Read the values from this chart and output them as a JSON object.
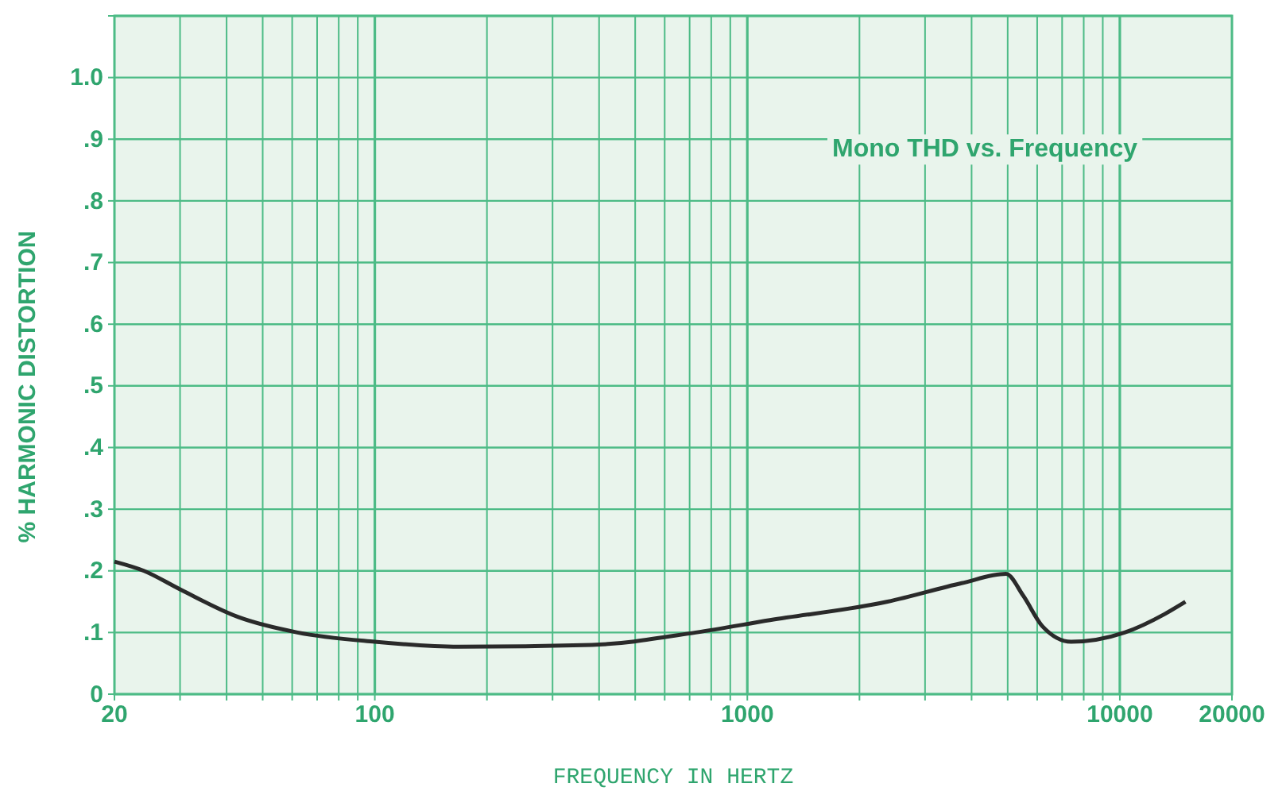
{
  "chart_data": {
    "type": "line",
    "title": "Mono THD vs. Frequency",
    "xlabel": "FREQUENCY IN HERTZ",
    "ylabel": "% HARMONIC DISTORTION",
    "log": "x",
    "grid": true,
    "marker": "none",
    "line_style": "solid",
    "xlim": [
      20,
      20000
    ],
    "xticks": [
      20,
      {
        "value": 30,
        "label": null
      },
      {
        "value": 40,
        "label": null
      },
      {
        "value": 50,
        "label": null
      },
      {
        "value": 60,
        "label": null
      },
      {
        "value": 70,
        "label": null
      },
      {
        "value": 80,
        "label": null
      },
      {
        "value": 90,
        "label": null
      },
      100,
      {
        "value": 200,
        "label": null
      },
      {
        "value": 300,
        "label": null
      },
      {
        "value": 400,
        "label": null
      },
      {
        "value": 500,
        "label": null
      },
      {
        "value": 600,
        "label": null
      },
      {
        "value": 700,
        "label": null
      },
      {
        "value": 800,
        "label": null
      },
      {
        "value": 900,
        "label": null
      },
      1000,
      {
        "value": 2000,
        "label": null
      },
      {
        "value": 3000,
        "label": null
      },
      {
        "value": 4000,
        "label": null
      },
      {
        "value": 5000,
        "label": null
      },
      {
        "value": 6000,
        "label": null
      },
      {
        "value": 7000,
        "label": null
      },
      {
        "value": 8000,
        "label": null
      },
      {
        "value": 9000,
        "label": null
      },
      10000,
      20000
    ],
    "ylim": [
      0,
      1.1
    ],
    "yticks": [
      {
        "value": 0,
        "label": "0"
      },
      {
        "value": 0.1,
        "label": ".1"
      },
      {
        "value": 0.2,
        "label": ".2"
      },
      {
        "value": 0.3,
        "label": ".3"
      },
      {
        "value": 0.4,
        "label": ".4"
      },
      {
        "value": 0.5,
        "label": ".5"
      },
      {
        "value": 0.6,
        "label": ".6"
      },
      {
        "value": 0.7,
        "label": ".7"
      },
      {
        "value": 0.8,
        "label": ".8"
      },
      {
        "value": 0.9,
        "label": ".9"
      },
      {
        "value": 1.0,
        "label": "1.0"
      },
      {
        "value": 1.1,
        "label": null
      }
    ],
    "x": [
      20,
      24,
      30,
      43,
      62,
      100,
      168,
      383,
      727,
      1150,
      2380,
      3760,
      4950,
      5500,
      6200,
      7400,
      10300,
      13200,
      15000
    ],
    "series": [
      {
        "color": "#2a2a2a",
        "values": [
          0.215,
          0.2,
          0.17,
          0.125,
          0.1,
          0.085,
          0.077,
          0.08,
          0.1,
          0.12,
          0.15,
          0.18,
          0.195,
          0.16,
          0.11,
          0.085,
          0.1,
          0.13,
          0.15
        ]
      }
    ]
  }
}
